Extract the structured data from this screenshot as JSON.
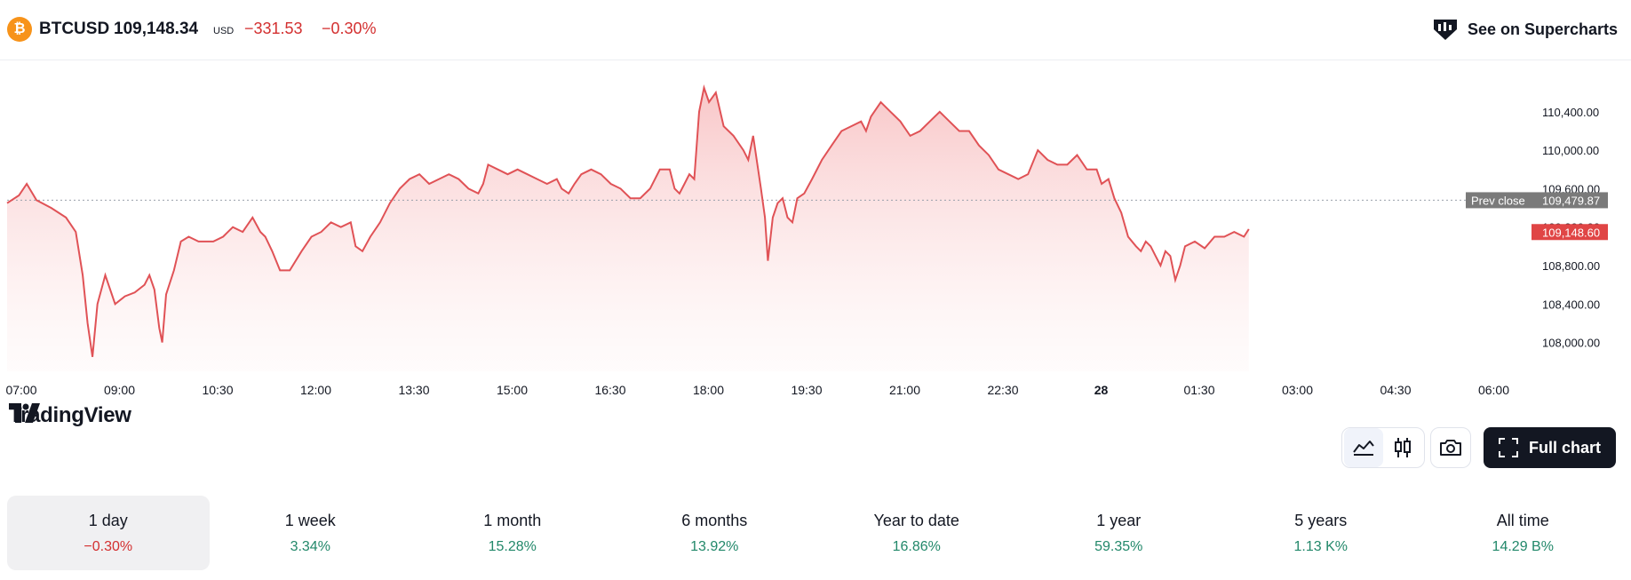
{
  "header": {
    "symbol": "BTCUSD",
    "price": "109,148.34",
    "currency": "USD",
    "change": "−331.53",
    "change_pct": "−0.30%",
    "superchart_label": "See on Supercharts"
  },
  "colors": {
    "line": "#e05256",
    "down": "#d32f2f",
    "up": "#22886a",
    "prev_close_label_bg": "#7a7a7a",
    "price_label_bg": "#e04545"
  },
  "branding": {
    "logo_text": "TradingView"
  },
  "chart_data": {
    "type": "area",
    "x_ticks": [
      "07:00",
      "09:00",
      "10:30",
      "12:00",
      "13:30",
      "15:00",
      "16:30",
      "18:00",
      "19:30",
      "21:00",
      "22:30",
      "28",
      "01:30",
      "03:00",
      "04:30",
      "06:00"
    ],
    "y_ticks": [
      108000,
      108400,
      108800,
      109200,
      109600,
      110000,
      110400
    ],
    "y_tick_labels": [
      "108,000.00",
      "108,400.00",
      "108,800.00",
      "109,200.00",
      "109,600.00",
      "110,000.00",
      "110,400.00"
    ],
    "ylim": [
      107700,
      110750
    ],
    "prev_close": {
      "label": "Prev close",
      "value": "109,479.87",
      "y": 109479.87
    },
    "last_price": {
      "value": "109,148.60",
      "y": 109148.6
    },
    "series": [
      {
        "points": [
          [
            0,
            109450
          ],
          [
            0.12,
            109530
          ],
          [
            0.2,
            109650
          ],
          [
            0.3,
            109480
          ],
          [
            0.45,
            109400
          ],
          [
            0.6,
            109300
          ],
          [
            0.7,
            109150
          ],
          [
            0.77,
            108700
          ],
          [
            0.82,
            108200
          ],
          [
            0.87,
            107850
          ],
          [
            0.92,
            108400
          ],
          [
            1.0,
            108700
          ],
          [
            1.1,
            108400
          ],
          [
            1.2,
            108480
          ],
          [
            1.3,
            108520
          ],
          [
            1.4,
            108600
          ],
          [
            1.45,
            108700
          ],
          [
            1.5,
            108550
          ],
          [
            1.55,
            108150
          ],
          [
            1.58,
            108000
          ],
          [
            1.62,
            108500
          ],
          [
            1.7,
            108750
          ],
          [
            1.77,
            109050
          ],
          [
            1.85,
            109100
          ],
          [
            1.95,
            109050
          ],
          [
            2.1,
            109050
          ],
          [
            2.2,
            109100
          ],
          [
            2.3,
            109200
          ],
          [
            2.4,
            109150
          ],
          [
            2.5,
            109300
          ],
          [
            2.58,
            109150
          ],
          [
            2.63,
            109100
          ],
          [
            2.7,
            108950
          ],
          [
            2.78,
            108750
          ],
          [
            2.88,
            108750
          ],
          [
            3.0,
            108950
          ],
          [
            3.1,
            109100
          ],
          [
            3.2,
            109150
          ],
          [
            3.3,
            109250
          ],
          [
            3.4,
            109200
          ],
          [
            3.5,
            109250
          ],
          [
            3.55,
            109000
          ],
          [
            3.62,
            108950
          ],
          [
            3.7,
            109100
          ],
          [
            3.8,
            109250
          ],
          [
            3.9,
            109450
          ],
          [
            4.0,
            109600
          ],
          [
            4.1,
            109700
          ],
          [
            4.2,
            109750
          ],
          [
            4.3,
            109650
          ],
          [
            4.4,
            109700
          ],
          [
            4.5,
            109750
          ],
          [
            4.6,
            109700
          ],
          [
            4.7,
            109600
          ],
          [
            4.8,
            109550
          ],
          [
            4.85,
            109650
          ],
          [
            4.9,
            109850
          ],
          [
            5.0,
            109800
          ],
          [
            5.1,
            109750
          ],
          [
            5.2,
            109800
          ],
          [
            5.3,
            109750
          ],
          [
            5.4,
            109700
          ],
          [
            5.5,
            109650
          ],
          [
            5.6,
            109700
          ],
          [
            5.65,
            109600
          ],
          [
            5.72,
            109550
          ],
          [
            5.78,
            109650
          ],
          [
            5.85,
            109750
          ],
          [
            5.95,
            109800
          ],
          [
            6.05,
            109750
          ],
          [
            6.15,
            109650
          ],
          [
            6.25,
            109600
          ],
          [
            6.35,
            109500
          ],
          [
            6.45,
            109500
          ],
          [
            6.55,
            109600
          ],
          [
            6.65,
            109800
          ],
          [
            6.75,
            109800
          ],
          [
            6.8,
            109600
          ],
          [
            6.85,
            109550
          ],
          [
            6.9,
            109650
          ],
          [
            6.95,
            109750
          ],
          [
            7.0,
            109700
          ],
          [
            7.05,
            110400
          ],
          [
            7.1,
            110650
          ],
          [
            7.15,
            110500
          ],
          [
            7.22,
            110600
          ],
          [
            7.3,
            110250
          ],
          [
            7.4,
            110150
          ],
          [
            7.5,
            110000
          ],
          [
            7.55,
            109900
          ],
          [
            7.6,
            110150
          ],
          [
            7.68,
            109600
          ],
          [
            7.72,
            109300
          ],
          [
            7.75,
            108850
          ],
          [
            7.8,
            109300
          ],
          [
            7.85,
            109450
          ],
          [
            7.9,
            109500
          ],
          [
            7.95,
            109300
          ],
          [
            8.0,
            109250
          ],
          [
            8.05,
            109500
          ],
          [
            8.12,
            109550
          ],
          [
            8.2,
            109700
          ],
          [
            8.3,
            109900
          ],
          [
            8.4,
            110050
          ],
          [
            8.5,
            110200
          ],
          [
            8.6,
            110250
          ],
          [
            8.7,
            110300
          ],
          [
            8.75,
            110200
          ],
          [
            8.8,
            110350
          ],
          [
            8.9,
            110500
          ],
          [
            9.0,
            110400
          ],
          [
            9.1,
            110300
          ],
          [
            9.2,
            110150
          ],
          [
            9.3,
            110200
          ],
          [
            9.4,
            110300
          ],
          [
            9.5,
            110400
          ],
          [
            9.6,
            110300
          ],
          [
            9.7,
            110200
          ],
          [
            9.8,
            110200
          ],
          [
            9.9,
            110050
          ],
          [
            10.0,
            109950
          ],
          [
            10.1,
            109800
          ],
          [
            10.2,
            109750
          ],
          [
            10.3,
            109700
          ],
          [
            10.4,
            109750
          ],
          [
            10.5,
            110000
          ],
          [
            10.6,
            109900
          ],
          [
            10.7,
            109850
          ],
          [
            10.8,
            109850
          ],
          [
            10.9,
            109950
          ],
          [
            11.0,
            109800
          ],
          [
            11.1,
            109800
          ],
          [
            11.15,
            109650
          ],
          [
            11.22,
            109700
          ],
          [
            11.28,
            109500
          ],
          [
            11.35,
            109350
          ],
          [
            11.42,
            109100
          ],
          [
            11.5,
            109000
          ],
          [
            11.55,
            108950
          ],
          [
            11.6,
            109050
          ],
          [
            11.65,
            109000
          ],
          [
            11.7,
            108900
          ],
          [
            11.75,
            108800
          ],
          [
            11.8,
            108950
          ],
          [
            11.85,
            108900
          ],
          [
            11.9,
            108650
          ],
          [
            11.95,
            108800
          ],
          [
            12.0,
            109000
          ],
          [
            12.1,
            109050
          ],
          [
            12.2,
            108980
          ],
          [
            12.3,
            109100
          ],
          [
            12.4,
            109100
          ],
          [
            12.5,
            109150
          ],
          [
            12.6,
            109100
          ],
          [
            12.65,
            109180
          ]
        ]
      }
    ]
  },
  "toolbar": {
    "line_chart_icon": "line-chart-icon",
    "candles_icon": "candles-icon",
    "camera_icon": "camera-icon",
    "full_chart_label": "Full chart"
  },
  "ranges": [
    {
      "label": "1 day",
      "value": "−0.30%",
      "trend": "down",
      "active": true
    },
    {
      "label": "1 week",
      "value": "3.34%",
      "trend": "up",
      "active": false
    },
    {
      "label": "1 month",
      "value": "15.28%",
      "trend": "up",
      "active": false
    },
    {
      "label": "6 months",
      "value": "13.92%",
      "trend": "up",
      "active": false
    },
    {
      "label": "Year to date",
      "value": "16.86%",
      "trend": "up",
      "active": false
    },
    {
      "label": "1 year",
      "value": "59.35%",
      "trend": "up",
      "active": false
    },
    {
      "label": "5 years",
      "value": "1.13 K%",
      "trend": "up",
      "active": false
    },
    {
      "label": "All time",
      "value": "14.29 B%",
      "trend": "up",
      "active": false
    }
  ]
}
